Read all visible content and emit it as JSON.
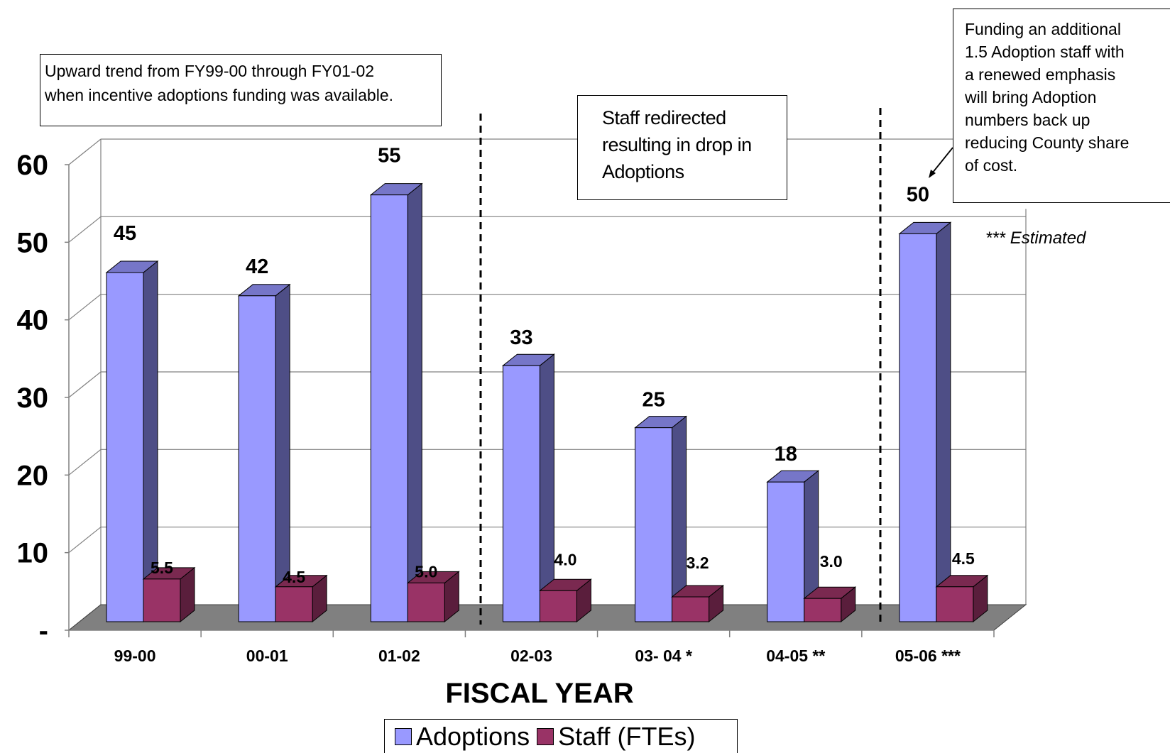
{
  "chart_data": {
    "type": "bar",
    "title": "",
    "xlabel": "FISCAL YEAR",
    "ylabel": "",
    "categories": [
      "99-00",
      "00-01",
      "01-02",
      "02-03",
      "03- 04 *",
      "04-05 **",
      "05-06 ***"
    ],
    "series": [
      {
        "name": "Adoptions",
        "values": [
          45,
          42,
          55,
          33,
          25,
          18,
          50
        ],
        "labels": [
          "45",
          "42",
          "55",
          "33",
          "25",
          "18",
          "50"
        ],
        "color": "#9999FF",
        "side_color": "#4E4E86",
        "top_color": "#7676C8"
      },
      {
        "name": "Staff (FTEs)",
        "values": [
          5.5,
          4.5,
          5.0,
          4.0,
          3.2,
          3.0,
          4.5
        ],
        "labels": [
          "5.5",
          "4.5",
          "5.0",
          "4.0",
          "3.2",
          "3.0",
          "4.5"
        ],
        "color": "#993366",
        "side_color": "#5A1E3C",
        "top_color": "#7A2950"
      }
    ],
    "y_ticks": [
      "-",
      "10",
      "20",
      "30",
      "40",
      "50",
      "60"
    ],
    "ylim": [
      0,
      60
    ],
    "grid": true,
    "legend": "bottom",
    "floor_color": "#808080"
  },
  "annotations": {
    "note1": [
      "Upward trend from FY99-00 through FY01-02",
      "when incentive adoptions funding was available."
    ],
    "note2": [
      "Staff redirected",
      "resulting in drop in",
      "Adoptions"
    ],
    "note3": [
      "Funding an additional",
      "1.5 Adoption staff with",
      "a renewed emphasis",
      "will bring Adoption",
      "numbers back up",
      "reducing County share",
      "of cost."
    ],
    "estimated": "*** Estimated"
  },
  "legend_labels": {
    "adoptions": "Adoptions",
    "staff": "Staff (FTEs)"
  }
}
